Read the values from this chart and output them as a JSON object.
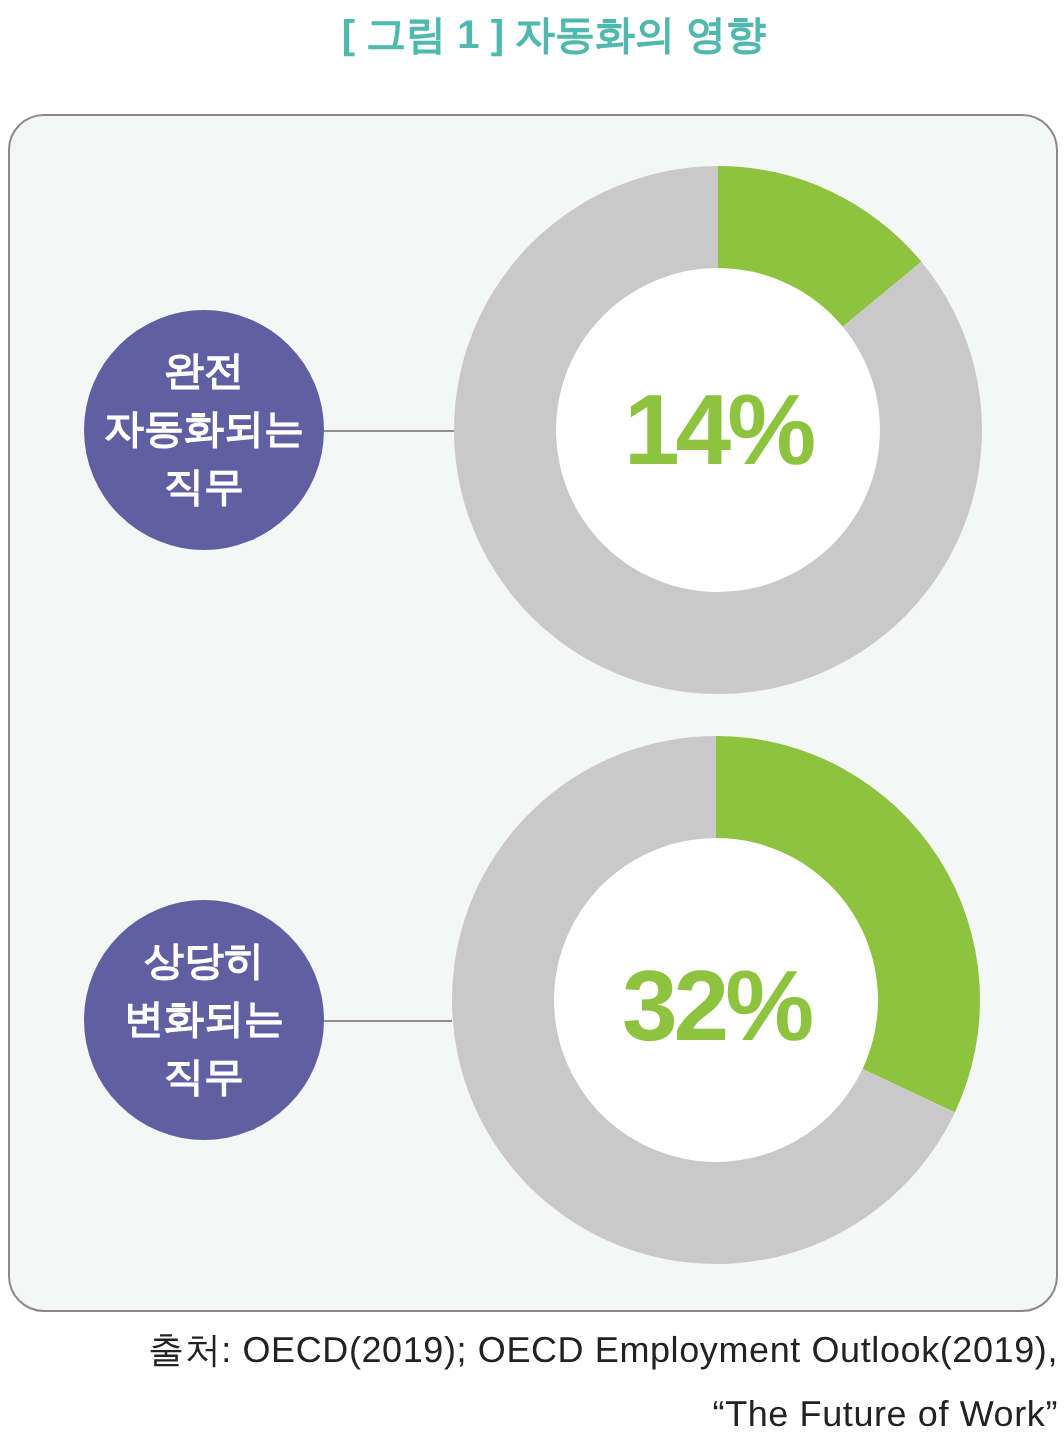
{
  "chart_data": [
    {
      "type": "donut",
      "title": "[ 그림 1 ] 자동화의 영향",
      "subtitle": "완전 자동화되는 직무",
      "categories": [
        null,
        null
      ],
      "values": [
        14,
        86
      ],
      "colors": [
        "#8dc33f",
        "#c8c9c8"
      ],
      "annotations": [
        "14%"
      ]
    },
    {
      "type": "donut",
      "subtitle": "상당히 변화되는 직무",
      "categories": [
        null,
        null
      ],
      "values": [
        32,
        68
      ],
      "colors": [
        "#8dc33f",
        "#c8c9c8"
      ],
      "annotations": [
        "32%",
        "출처: OECD(2019); OECD Employment Outlook(2019), “The Future of Work”"
      ]
    }
  ]
}
